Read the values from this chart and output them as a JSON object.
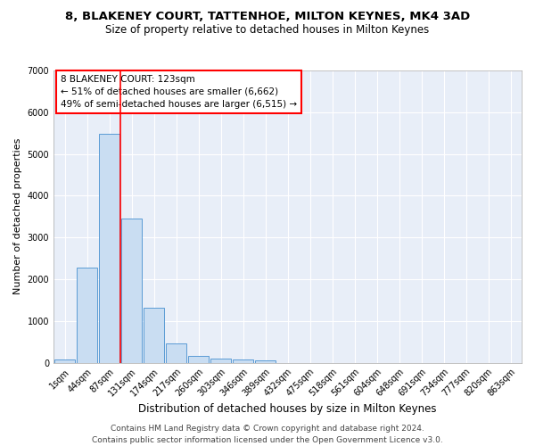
{
  "title1": "8, BLAKENEY COURT, TATTENHOE, MILTON KEYNES, MK4 3AD",
  "title2": "Size of property relative to detached houses in Milton Keynes",
  "xlabel": "Distribution of detached houses by size in Milton Keynes",
  "ylabel": "Number of detached properties",
  "bar_color": "#c9ddf2",
  "bar_edge_color": "#5b9bd5",
  "background_color": "#e8eef8",
  "grid_color": "#ffffff",
  "categories": [
    "1sqm",
    "44sqm",
    "87sqm",
    "131sqm",
    "174sqm",
    "217sqm",
    "260sqm",
    "303sqm",
    "346sqm",
    "389sqm",
    "432sqm",
    "475sqm",
    "518sqm",
    "561sqm",
    "604sqm",
    "648sqm",
    "691sqm",
    "734sqm",
    "777sqm",
    "820sqm",
    "863sqm"
  ],
  "values": [
    80,
    2280,
    5480,
    3450,
    1310,
    470,
    160,
    95,
    70,
    45,
    0,
    0,
    0,
    0,
    0,
    0,
    0,
    0,
    0,
    0,
    0
  ],
  "ylim": [
    0,
    7000
  ],
  "yticks": [
    0,
    1000,
    2000,
    3000,
    4000,
    5000,
    6000,
    7000
  ],
  "property_line_x": 2.5,
  "annotation_box_text": "8 BLAKENEY COURT: 123sqm\n← 51% of detached houses are smaller (6,662)\n49% of semi-detached houses are larger (6,515) →",
  "footer_line1": "Contains HM Land Registry data © Crown copyright and database right 2024.",
  "footer_line2": "Contains public sector information licensed under the Open Government Licence v3.0.",
  "title1_fontsize": 9.5,
  "title2_fontsize": 8.5,
  "xlabel_fontsize": 8.5,
  "ylabel_fontsize": 8,
  "tick_fontsize": 7,
  "annotation_fontsize": 7.5,
  "footer_fontsize": 6.5
}
